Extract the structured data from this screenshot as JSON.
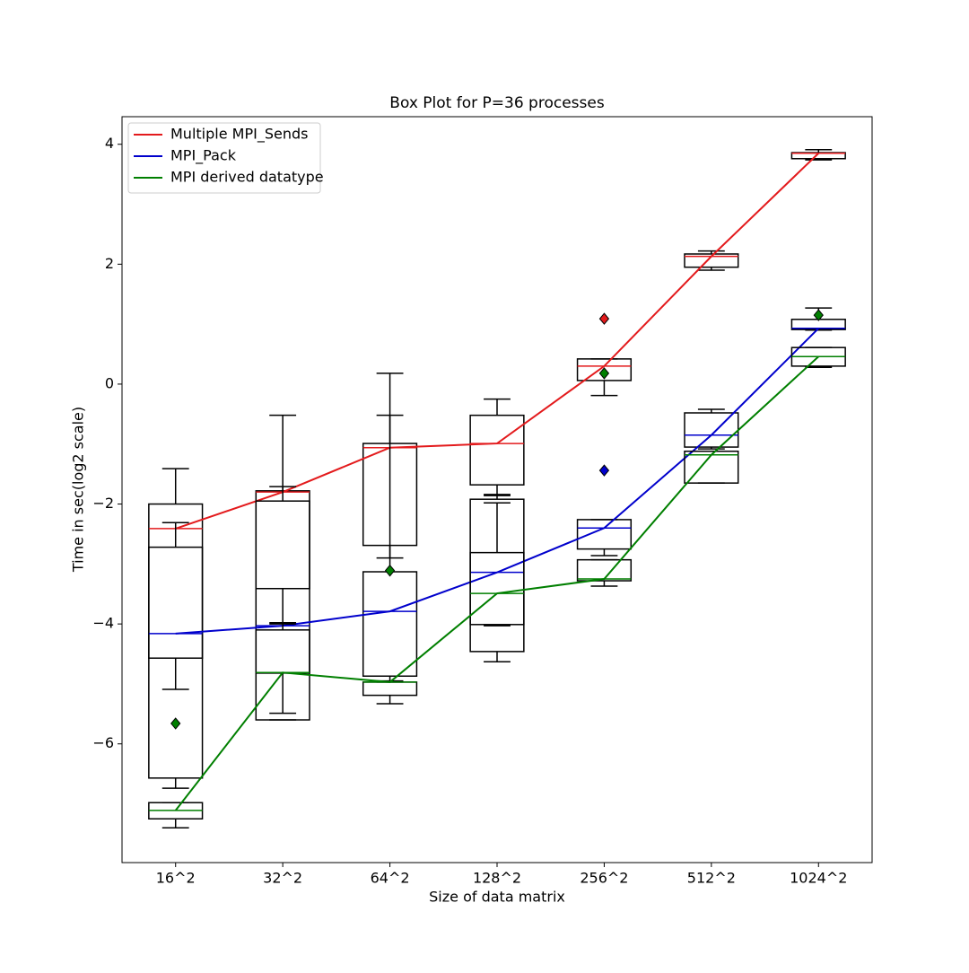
{
  "chart_data": {
    "type": "box",
    "title": "Box Plot for P=36 processes",
    "x_label": "Size of data matrix",
    "y_label": "Time in sec(log2 scale)",
    "categories": [
      "16^2",
      "32^2",
      "64^2",
      "128^2",
      "256^2",
      "512^2",
      "1024^2"
    ],
    "ylim": [
      -7.98,
      4.46
    ],
    "yticks": [
      {
        "value": -6,
        "label": "−6"
      },
      {
        "value": -4,
        "label": "−4"
      },
      {
        "value": -2,
        "label": "−2"
      },
      0,
      2,
      4
    ],
    "legend": "upper left",
    "series": [
      {
        "name": "Multiple MPI_Sends",
        "color": "#e31a1c",
        "whislo": [
          -5.09,
          -3.98,
          -2.9,
          -1.86,
          -0.19,
          1.9,
          3.74
        ],
        "q1": [
          -4.57,
          -3.41,
          -2.69,
          -1.68,
          0.06,
          1.95,
          3.76
        ],
        "median": [
          -2.41,
          -1.8,
          -1.06,
          -0.99,
          0.3,
          2.13,
          3.85
        ],
        "q3": [
          -2.0,
          -1.78,
          -0.99,
          -0.52,
          0.42,
          2.17,
          3.86
        ],
        "whishi": [
          -1.41,
          -0.52,
          0.18,
          -0.25,
          0.42,
          2.22,
          3.91
        ],
        "fliers": [
          [],
          [],
          [],
          [],
          [
            1.09
          ],
          [],
          []
        ]
      },
      {
        "name": "MPI_Pack",
        "color": "#0000cc",
        "whislo": [
          -6.74,
          -5.6,
          -4.97,
          -4.03,
          -2.86,
          -1.08,
          0.9
        ],
        "q1": [
          -6.57,
          -5.6,
          -4.87,
          -4.01,
          -2.75,
          -1.05,
          0.91
        ],
        "median": [
          -4.16,
          -4.03,
          -3.79,
          -3.14,
          -2.4,
          -0.85,
          0.93
        ],
        "q3": [
          -2.72,
          -1.95,
          -3.13,
          -1.92,
          -2.26,
          -0.48,
          1.08
        ],
        "whishi": [
          -2.31,
          -1.71,
          -0.52,
          -1.84,
          -2.26,
          -0.42,
          1.27
        ],
        "fliers": [
          [],
          [],
          [],
          [],
          [
            -1.44
          ],
          [],
          []
        ]
      },
      {
        "name": "MPI derived datatype",
        "color": "#007f00",
        "whislo": [
          -7.4,
          -5.49,
          -5.33,
          -4.63,
          -3.37,
          -1.65,
          0.28
        ],
        "q1": [
          -7.25,
          -4.82,
          -5.19,
          -4.46,
          -3.28,
          -1.65,
          0.3
        ],
        "median": [
          -7.11,
          -4.81,
          -4.97,
          -3.49,
          -3.25,
          -1.18,
          0.46
        ],
        "q3": [
          -6.98,
          -4.1,
          -4.97,
          -2.81,
          -2.93,
          -1.12,
          0.61
        ],
        "whishi": [
          -6.98,
          -4.0,
          -4.95,
          -1.98,
          -2.93,
          -1.12,
          0.61
        ],
        "fliers": [
          [
            -5.66
          ],
          [],
          [
            -3.11
          ],
          [],
          [
            0.18
          ],
          [],
          [
            1.15
          ]
        ]
      }
    ]
  }
}
